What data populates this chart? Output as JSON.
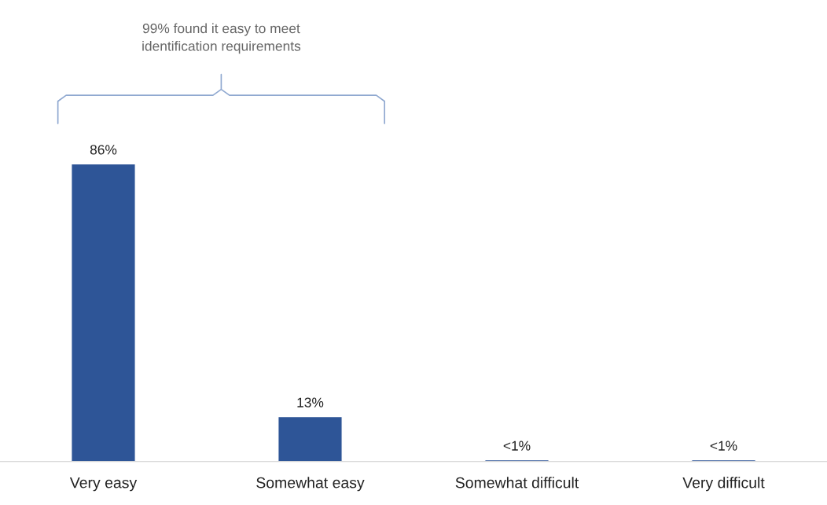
{
  "chart_data": {
    "type": "bar",
    "categories": [
      "Very easy",
      "Somewhat easy",
      "Somewhat difficult",
      "Very difficult"
    ],
    "values": [
      86,
      13,
      0.5,
      0.5
    ],
    "value_labels": [
      "86%",
      "13%",
      "<1%",
      "<1%"
    ],
    "color": "#2e5597",
    "grid": false,
    "legend": false,
    "annotations": [
      "99% found it easy to meet\nidentification requirements"
    ]
  }
}
